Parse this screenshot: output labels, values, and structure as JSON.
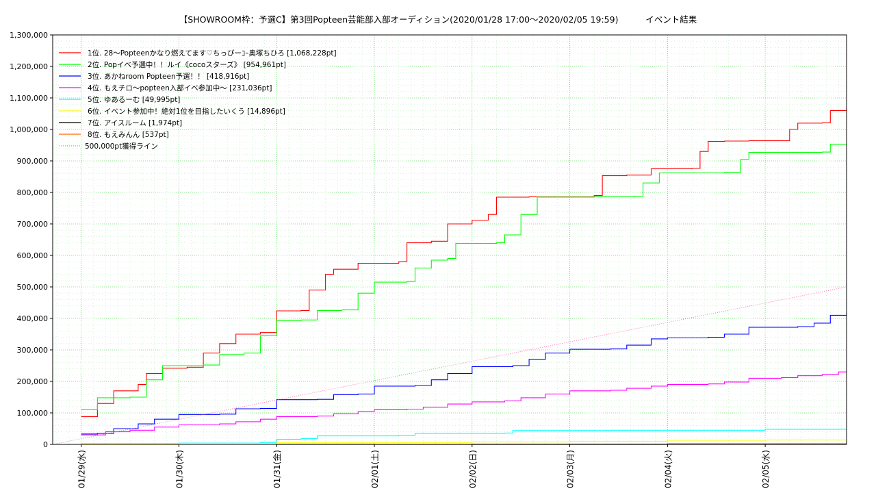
{
  "chart_data": {
    "type": "line",
    "title": "【SHOWROOM枠：予選C】第3回Popteen芸能部入部オーディション(2020/01/28 17:00～2020/02/05 19:59)          イベント結果",
    "xlabel": "",
    "ylabel": "",
    "ylim": [
      0,
      1300000
    ],
    "yticks": [
      "0",
      "100,000",
      "200,000",
      "300,000",
      "400,000",
      "500,000",
      "600,000",
      "700,000",
      "800,000",
      "900,000",
      "1,000,000",
      "1,100,000",
      "1,200,000",
      "1,300,000"
    ],
    "ytick_values": [
      0,
      100000,
      200000,
      300000,
      400000,
      500000,
      600000,
      700000,
      800000,
      900000,
      1000000,
      1100000,
      1200000,
      1300000
    ],
    "xlim": [
      "2020/01/28 17:00",
      "2020/02/05 19:59"
    ],
    "xticks": [
      "01/29(水)",
      "01/30(木)",
      "01/31(金)",
      "02/01(土)",
      "02/02(日)",
      "02/03(月)",
      "02/04(火)",
      "02/05(水)"
    ],
    "xtick_dates": [
      "2020/01/29 00:00",
      "2020/01/30 00:00",
      "2020/01/31 00:00",
      "2020/02/01 00:00",
      "2020/02/02 00:00",
      "2020/02/03 00:00",
      "2020/02/04 00:00",
      "2020/02/05 00:00"
    ],
    "grid": true,
    "legend_position": "top-left",
    "series": [
      {
        "name": "1位. 28～Popteenかなり燃えてます♡ちっぴーｺｰ奥塚ちひろ [1,068,228pt]",
        "color": "#ff0000",
        "points": [
          [
            "2020/01/29 00:00",
            88000
          ],
          [
            "2020/01/29 04:00",
            130000
          ],
          [
            "2020/01/29 08:00",
            170000
          ],
          [
            "2020/01/29 14:00",
            190000
          ],
          [
            "2020/01/29 16:00",
            225000
          ],
          [
            "2020/01/29 20:00",
            242000
          ],
          [
            "2020/01/30 02:00",
            245000
          ],
          [
            "2020/01/30 06:00",
            290000
          ],
          [
            "2020/01/30 10:00",
            320000
          ],
          [
            "2020/01/30 14:00",
            350000
          ],
          [
            "2020/01/30 20:00",
            355000
          ],
          [
            "2020/01/31 00:00",
            424000
          ],
          [
            "2020/01/31 06:00",
            425000
          ],
          [
            "2020/01/31 08:00",
            490000
          ],
          [
            "2020/01/31 12:00",
            540000
          ],
          [
            "2020/01/31 14:00",
            556000
          ],
          [
            "2020/01/31 20:00",
            575000
          ],
          [
            "2020/02/01 06:00",
            580000
          ],
          [
            "2020/02/01 08:00",
            640000
          ],
          [
            "2020/02/01 14:00",
            645000
          ],
          [
            "2020/02/01 18:00",
            700000
          ],
          [
            "2020/02/02 00:00",
            712000
          ],
          [
            "2020/02/02 04:00",
            730000
          ],
          [
            "2020/02/02 06:00",
            785000
          ],
          [
            "2020/02/02 14:00",
            786000
          ],
          [
            "2020/02/03 06:00",
            790000
          ],
          [
            "2020/02/03 08:00",
            853000
          ],
          [
            "2020/02/03 14:00",
            855000
          ],
          [
            "2020/02/03 20:00",
            875000
          ],
          [
            "2020/02/04 06:00",
            876000
          ],
          [
            "2020/02/04 08:00",
            930000
          ],
          [
            "2020/02/04 10:00",
            962000
          ],
          [
            "2020/02/04 14:00",
            963000
          ],
          [
            "2020/02/04 20:00",
            964000
          ],
          [
            "2020/02/05 06:00",
            1000000
          ],
          [
            "2020/02/05 08:00",
            1020000
          ],
          [
            "2020/02/05 14:00",
            1021000
          ],
          [
            "2020/02/05 16:00",
            1060000
          ],
          [
            "2020/02/05 19:59",
            1068228
          ]
        ]
      },
      {
        "name": "2位. Popイベ予選中！！ルイ《cocoスターズ》 [954,961pt]",
        "color": "#00ff00",
        "points": [
          [
            "2020/01/29 00:00",
            110000
          ],
          [
            "2020/01/29 04:00",
            148000
          ],
          [
            "2020/01/29 12:00",
            150000
          ],
          [
            "2020/01/29 16:00",
            205000
          ],
          [
            "2020/01/29 20:00",
            250000
          ],
          [
            "2020/01/30 06:00",
            252000
          ],
          [
            "2020/01/30 10:00",
            285000
          ],
          [
            "2020/01/30 16:00",
            290000
          ],
          [
            "2020/01/30 20:00",
            345000
          ],
          [
            "2020/01/31 00:00",
            393000
          ],
          [
            "2020/01/31 06:00",
            395000
          ],
          [
            "2020/01/31 10:00",
            425000
          ],
          [
            "2020/01/31 16:00",
            427000
          ],
          [
            "2020/01/31 20:00",
            480000
          ],
          [
            "2020/02/01 00:00",
            515000
          ],
          [
            "2020/02/01 08:00",
            517000
          ],
          [
            "2020/02/01 10:00",
            560000
          ],
          [
            "2020/02/01 14:00",
            585000
          ],
          [
            "2020/02/01 18:00",
            590000
          ],
          [
            "2020/02/01 20:00",
            638000
          ],
          [
            "2020/02/02 06:00",
            640000
          ],
          [
            "2020/02/02 08:00",
            665000
          ],
          [
            "2020/02/02 12:00",
            730000
          ],
          [
            "2020/02/02 16:00",
            785000
          ],
          [
            "2020/02/03 06:00",
            786000
          ],
          [
            "2020/02/03 16:00",
            788000
          ],
          [
            "2020/02/03 18:00",
            830000
          ],
          [
            "2020/02/03 22:00",
            862000
          ],
          [
            "2020/02/04 14:00",
            864000
          ],
          [
            "2020/02/04 18:00",
            905000
          ],
          [
            "2020/02/04 20:00",
            927000
          ],
          [
            "2020/02/05 14:00",
            928000
          ],
          [
            "2020/02/05 16:00",
            953000
          ],
          [
            "2020/02/05 19:59",
            954961
          ]
        ]
      },
      {
        "name": "3位. あかねroom Popteen予選！！ [418,916pt]",
        "color": "#0000ff",
        "points": [
          [
            "2020/01/29 00:00",
            33000
          ],
          [
            "2020/01/29 04:00",
            35000
          ],
          [
            "2020/01/29 08:00",
            50000
          ],
          [
            "2020/01/29 14:00",
            65000
          ],
          [
            "2020/01/29 18:00",
            80000
          ],
          [
            "2020/01/30 00:00",
            95000
          ],
          [
            "2020/01/30 10:00",
            96000
          ],
          [
            "2020/01/30 14:00",
            113000
          ],
          [
            "2020/01/30 20:00",
            114000
          ],
          [
            "2020/01/31 00:00",
            142000
          ],
          [
            "2020/01/31 10:00",
            143000
          ],
          [
            "2020/01/31 14:00",
            158000
          ],
          [
            "2020/01/31 20:00",
            160000
          ],
          [
            "2020/02/01 00:00",
            185000
          ],
          [
            "2020/02/01 10:00",
            187000
          ],
          [
            "2020/02/01 14:00",
            205000
          ],
          [
            "2020/02/01 18:00",
            225000
          ],
          [
            "2020/02/02 00:00",
            247000
          ],
          [
            "2020/02/02 10:00",
            250000
          ],
          [
            "2020/02/02 14:00",
            270000
          ],
          [
            "2020/02/02 18:00",
            290000
          ],
          [
            "2020/02/03 00:00",
            302000
          ],
          [
            "2020/02/03 10:00",
            303000
          ],
          [
            "2020/02/03 14:00",
            315000
          ],
          [
            "2020/02/03 20:00",
            335000
          ],
          [
            "2020/02/04 00:00",
            338000
          ],
          [
            "2020/02/04 10:00",
            340000
          ],
          [
            "2020/02/04 14:00",
            350000
          ],
          [
            "2020/02/04 20:00",
            372000
          ],
          [
            "2020/02/05 08:00",
            374000
          ],
          [
            "2020/02/05 12:00",
            385000
          ],
          [
            "2020/02/05 16:00",
            410000
          ],
          [
            "2020/02/05 19:59",
            418916
          ]
        ]
      },
      {
        "name": "4位. もえチロ～popteen入部イベ参加中～ [231,036pt]",
        "color": "#ff00ff",
        "points": [
          [
            "2020/01/29 00:00",
            30000
          ],
          [
            "2020/01/29 06:00",
            40000
          ],
          [
            "2020/01/29 12:00",
            45000
          ],
          [
            "2020/01/29 18:00",
            55000
          ],
          [
            "2020/01/30 00:00",
            62000
          ],
          [
            "2020/01/30 10:00",
            65000
          ],
          [
            "2020/01/30 14:00",
            72000
          ],
          [
            "2020/01/30 20:00",
            80000
          ],
          [
            "2020/01/31 00:00",
            88000
          ],
          [
            "2020/01/31 10:00",
            90000
          ],
          [
            "2020/01/31 14:00",
            97000
          ],
          [
            "2020/01/31 20:00",
            104000
          ],
          [
            "2020/02/01 00:00",
            110000
          ],
          [
            "2020/02/01 08:00",
            112000
          ],
          [
            "2020/02/01 12:00",
            118000
          ],
          [
            "2020/02/01 18:00",
            128000
          ],
          [
            "2020/02/02 00:00",
            135000
          ],
          [
            "2020/02/02 08:00",
            138000
          ],
          [
            "2020/02/02 12:00",
            148000
          ],
          [
            "2020/02/02 18:00",
            160000
          ],
          [
            "2020/02/03 00:00",
            170000
          ],
          [
            "2020/02/03 10:00",
            172000
          ],
          [
            "2020/02/03 14:00",
            178000
          ],
          [
            "2020/02/03 20:00",
            185000
          ],
          [
            "2020/02/04 00:00",
            190000
          ],
          [
            "2020/02/04 10:00",
            192000
          ],
          [
            "2020/02/04 14:00",
            198000
          ],
          [
            "2020/02/04 20:00",
            210000
          ],
          [
            "2020/02/05 04:00",
            212000
          ],
          [
            "2020/02/05 08:00",
            218000
          ],
          [
            "2020/02/05 14:00",
            222000
          ],
          [
            "2020/02/05 18:00",
            230000
          ],
          [
            "2020/02/05 19:59",
            231036
          ]
        ]
      },
      {
        "name": "5位. ゆあるーむ [49,995pt]",
        "color": "#00ffff",
        "points": [
          [
            "2020/01/29 00:00",
            2000
          ],
          [
            "2020/01/30 00:00",
            4000
          ],
          [
            "2020/01/30 20:00",
            6000
          ],
          [
            "2020/01/31 00:00",
            16000
          ],
          [
            "2020/01/31 06:00",
            18000
          ],
          [
            "2020/01/31 10:00",
            27000
          ],
          [
            "2020/02/01 06:00",
            28000
          ],
          [
            "2020/02/01 10:00",
            35000
          ],
          [
            "2020/02/02 08:00",
            36000
          ],
          [
            "2020/02/02 10:00",
            44000
          ],
          [
            "2020/02/03 10:00",
            45000
          ],
          [
            "2020/02/04 00:00",
            45000
          ],
          [
            "2020/02/05 00:00",
            48000
          ],
          [
            "2020/02/05 19:59",
            49995
          ]
        ]
      },
      {
        "name": "6位. イベント参加中！絶対1位を目指したいくう [14,896pt]",
        "color": "#ffff00",
        "points": [
          [
            "2020/01/29 00:00",
            1000
          ],
          [
            "2020/01/30 00:00",
            3000
          ],
          [
            "2020/01/31 00:00",
            5000
          ],
          [
            "2020/02/01 00:00",
            6000
          ],
          [
            "2020/02/02 00:00",
            8000
          ],
          [
            "2020/02/03 00:00",
            10000
          ],
          [
            "2020/02/04 00:00",
            13000
          ],
          [
            "2020/02/05 00:00",
            14000
          ],
          [
            "2020/02/05 19:59",
            14896
          ]
        ]
      },
      {
        "name": "7位. アイスルーム [1,974pt]",
        "color": "#000000",
        "points": [
          [
            "2020/01/29 00:00",
            0
          ],
          [
            "2020/01/31 00:00",
            500
          ],
          [
            "2020/02/02 00:00",
            1000
          ],
          [
            "2020/02/04 00:00",
            1500
          ],
          [
            "2020/02/05 19:59",
            1974
          ]
        ]
      },
      {
        "name": "8位. もえみんん [537pt]",
        "color": "#ff6600",
        "points": [
          [
            "2020/01/29 00:00",
            0
          ],
          [
            "2020/02/01 00:00",
            200
          ],
          [
            "2020/02/04 00:00",
            400
          ],
          [
            "2020/02/05 19:59",
            537
          ]
        ]
      },
      {
        "name": "500,000pt獲得ライン",
        "color": "#ff66aa",
        "dotted": true,
        "points": [
          [
            "2020/01/28 17:00",
            0
          ],
          [
            "2020/02/05 19:59",
            500000
          ]
        ]
      }
    ]
  }
}
